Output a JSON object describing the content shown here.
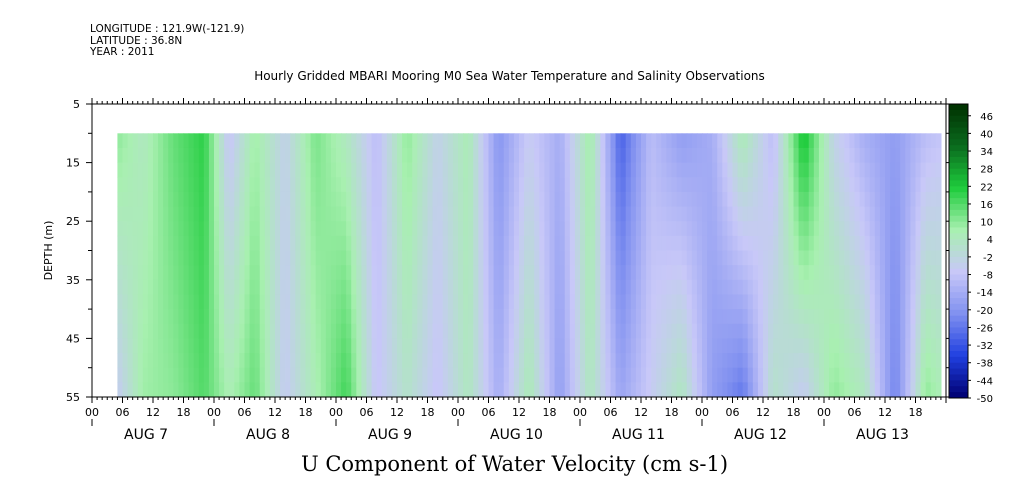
{
  "header": {
    "longitude": "LONGITUDE : 121.9W(-121.9)",
    "latitude": "LATITUDE : 36.8N",
    "year": "YEAR : 2011",
    "title": "Hourly Gridded MBARI Mooring M0 Sea Water Temperature and Salinity Observations"
  },
  "chart_data": {
    "type": "heatmap",
    "title": "Hourly Gridded MBARI Mooring M0 Sea Water Temperature and Salinity Observations",
    "subtitle": "U Component of Water Velocity (cm s-1)",
    "ylabel": "DEPTH (m)",
    "ylim": [
      55,
      5
    ],
    "yticks": [
      5,
      15,
      25,
      35,
      45,
      55
    ],
    "data_depth_range": [
      10,
      55
    ],
    "x_hour_ticks": [
      "00",
      "06",
      "12",
      "18"
    ],
    "x_days": [
      "AUG  7",
      "AUG  8",
      "AUG  9",
      "AUG 10",
      "AUG 11",
      "AUG 12",
      "AUG 13"
    ],
    "x_range_hours": [
      0,
      168
    ],
    "data_start_hour": 5,
    "colorbar": {
      "min": -50,
      "max": 50,
      "step": 2,
      "labels": [
        "46",
        "40",
        "34",
        "28",
        "22",
        "16",
        "10",
        "4",
        "-2",
        "-8",
        "-14",
        "-20",
        "-26",
        "-32",
        "-38",
        "-44",
        "-50"
      ],
      "colors": [
        "#003000",
        "#0a6a1e",
        "#1ecc3c",
        "#a8f0b0",
        "#c8c8f8",
        "#8090f0",
        "#2040e0",
        "#000070"
      ]
    },
    "profiles_by_hour": [
      {
        "hour": 5,
        "surface": 10,
        "bottom": -6
      },
      {
        "hour": 10,
        "surface": 4,
        "bottom": 8
      },
      {
        "hour": 16,
        "surface": 14,
        "bottom": 10
      },
      {
        "hour": 22,
        "surface": 20,
        "bottom": 16
      },
      {
        "hour": 27,
        "surface": -8,
        "bottom": 6
      },
      {
        "hour": 32,
        "surface": 8,
        "bottom": 14
      },
      {
        "hour": 38,
        "surface": -4,
        "bottom": -6
      },
      {
        "hour": 44,
        "surface": 12,
        "bottom": 6
      },
      {
        "hour": 50,
        "surface": 4,
        "bottom": 18
      },
      {
        "hour": 56,
        "surface": -10,
        "bottom": -8
      },
      {
        "hour": 62,
        "surface": 10,
        "bottom": 2
      },
      {
        "hour": 68,
        "surface": -4,
        "bottom": -8
      },
      {
        "hour": 74,
        "surface": 6,
        "bottom": 4
      },
      {
        "hour": 80,
        "surface": -20,
        "bottom": -14
      },
      {
        "hour": 86,
        "surface": -6,
        "bottom": 6
      },
      {
        "hour": 92,
        "surface": -14,
        "bottom": -18
      },
      {
        "hour": 98,
        "surface": 8,
        "bottom": 4
      },
      {
        "hour": 104,
        "surface": -30,
        "bottom": -16
      },
      {
        "hour": 110,
        "surface": -10,
        "bottom": -6
      },
      {
        "hour": 116,
        "surface": -18,
        "bottom": 4
      },
      {
        "hour": 122,
        "surface": -14,
        "bottom": -18
      },
      {
        "hour": 128,
        "surface": 6,
        "bottom": -26
      },
      {
        "hour": 134,
        "surface": -10,
        "bottom": 2
      },
      {
        "hour": 140,
        "surface": 24,
        "bottom": -6
      },
      {
        "hour": 146,
        "surface": -4,
        "bottom": 10
      },
      {
        "hour": 152,
        "surface": -14,
        "bottom": 4
      },
      {
        "hour": 158,
        "surface": -18,
        "bottom": -24
      },
      {
        "hour": 164,
        "surface": -10,
        "bottom": 10
      },
      {
        "hour": 167,
        "surface": -8,
        "bottom": 6
      }
    ]
  }
}
